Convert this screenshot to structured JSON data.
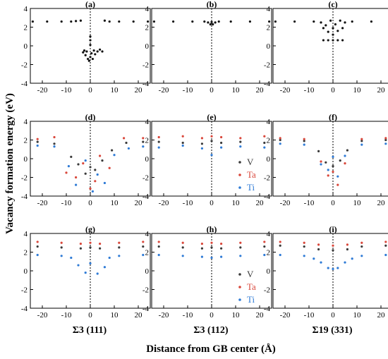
{
  "figure": {
    "ylabel": "Vacancy formation energy (eV)",
    "xlabel": "Distance from GB center (Å)",
    "column_labels": [
      "Σ3 (111)",
      "Σ3 (112)",
      "Σ19 (331)"
    ],
    "legend": [
      {
        "name": "V",
        "color": "#3a3a3a"
      },
      {
        "name": "Ta",
        "color": "#d9473b"
      },
      {
        "name": "Ti",
        "color": "#2f7bd6"
      }
    ],
    "x_ticks": [
      -20,
      -10,
      0,
      10,
      20
    ],
    "y_ticks": [
      -4,
      -2,
      0,
      2,
      4
    ],
    "xlim": [
      -25,
      25
    ],
    "ylim": [
      -4,
      4
    ]
  },
  "chart_data": [
    {
      "panel": "(a)",
      "type": "scatter",
      "xlim": [
        -25,
        25
      ],
      "ylim": [
        -4,
        4
      ],
      "series": [
        {
          "name": "V",
          "color": "#111111",
          "points": [
            [
              -24,
              2.6
            ],
            [
              -18,
              2.6
            ],
            [
              -12,
              2.6
            ],
            [
              -8,
              2.6
            ],
            [
              -6,
              2.65
            ],
            [
              -4,
              2.7
            ],
            [
              -3,
              -0.7
            ],
            [
              -2.5,
              -0.5
            ],
            [
              -2,
              -1.0
            ],
            [
              -1.5,
              -0.6
            ],
            [
              -1,
              -1.4
            ],
            [
              -0.5,
              -1.6
            ],
            [
              0,
              -1.2
            ],
            [
              0,
              0.1
            ],
            [
              0,
              0.6
            ],
            [
              0,
              1.0
            ],
            [
              0.5,
              -0.8
            ],
            [
              1,
              -1.4
            ],
            [
              1.5,
              -0.5
            ],
            [
              2,
              -0.9
            ],
            [
              3,
              -0.6
            ],
            [
              4,
              -0.4
            ],
            [
              5,
              -0.6
            ],
            [
              6,
              2.7
            ],
            [
              8,
              2.6
            ],
            [
              12,
              2.6
            ],
            [
              18,
              2.6
            ],
            [
              24,
              2.6
            ]
          ]
        }
      ]
    },
    {
      "panel": "(b)",
      "type": "scatter",
      "xlim": [
        -25,
        25
      ],
      "ylim": [
        -4,
        4
      ],
      "series": [
        {
          "name": "V",
          "color": "#111111",
          "points": [
            [
              -24,
              2.6
            ],
            [
              -16,
              2.6
            ],
            [
              -8,
              2.6
            ],
            [
              -3,
              2.6
            ],
            [
              -1.5,
              2.5
            ],
            [
              -0.5,
              2.3
            ],
            [
              0,
              2.55
            ],
            [
              0.5,
              2.3
            ],
            [
              1.5,
              2.5
            ],
            [
              3,
              2.6
            ],
            [
              8,
              2.6
            ],
            [
              16,
              2.6
            ],
            [
              24,
              2.6
            ]
          ]
        }
      ]
    },
    {
      "panel": "(c)",
      "type": "scatter",
      "xlim": [
        -25,
        25
      ],
      "ylim": [
        -4,
        4
      ],
      "series": [
        {
          "name": "V",
          "color": "#111111",
          "points": [
            [
              -24,
              2.6
            ],
            [
              -16,
              2.6
            ],
            [
              -8,
              2.6
            ],
            [
              -5,
              2.5
            ],
            [
              -4,
              1.9
            ],
            [
              -3,
              2.2
            ],
            [
              -2,
              1.5
            ],
            [
              -1,
              2.7
            ],
            [
              0,
              1.9
            ],
            [
              0,
              1.2
            ],
            [
              1,
              2.3
            ],
            [
              2,
              1.6
            ],
            [
              3,
              2.7
            ],
            [
              4,
              1.9
            ],
            [
              5,
              2.5
            ],
            [
              -4,
              0.6
            ],
            [
              -2,
              0.6
            ],
            [
              0,
              0.6
            ],
            [
              2,
              0.6
            ],
            [
              4,
              0.6
            ],
            [
              8,
              2.6
            ],
            [
              16,
              2.6
            ],
            [
              24,
              2.6
            ]
          ]
        }
      ]
    },
    {
      "panel": "(d)",
      "type": "scatter",
      "xlim": [
        -25,
        25
      ],
      "ylim": [
        -4,
        4
      ],
      "series": [
        {
          "name": "V",
          "color": "#3a3a3a",
          "points": [
            [
              -22,
              1.8
            ],
            [
              -15,
              1.6
            ],
            [
              -8,
              0.2
            ],
            [
              -5,
              -0.6
            ],
            [
              -2,
              -1.6
            ],
            [
              0,
              -0.9
            ],
            [
              2,
              -1.2
            ],
            [
              5,
              -0.2
            ],
            [
              9,
              0.9
            ],
            [
              15,
              1.7
            ],
            [
              22,
              1.8
            ]
          ]
        },
        {
          "name": "Ta",
          "color": "#d9473b",
          "points": [
            [
              -22,
              2.1
            ],
            [
              -15,
              2.3
            ],
            [
              -10,
              -1.5
            ],
            [
              -6,
              -2.0
            ],
            [
              -3,
              -0.5
            ],
            [
              0,
              -3.2
            ],
            [
              2,
              -2.4
            ],
            [
              4,
              0.3
            ],
            [
              8,
              -1.0
            ],
            [
              14,
              2.2
            ],
            [
              22,
              2.2
            ]
          ]
        },
        {
          "name": "Ti",
          "color": "#2f7bd6",
          "points": [
            [
              -22,
              1.4
            ],
            [
              -15,
              1.3
            ],
            [
              -9,
              -0.8
            ],
            [
              -6,
              -2.8
            ],
            [
              -2,
              -0.2
            ],
            [
              1,
              -3.5
            ],
            [
              3,
              -1.7
            ],
            [
              6,
              -2.6
            ],
            [
              10,
              0.4
            ],
            [
              16,
              1.1
            ],
            [
              22,
              1.3
            ]
          ]
        }
      ]
    },
    {
      "panel": "(e)",
      "type": "scatter",
      "xlim": [
        -25,
        25
      ],
      "ylim": [
        -4,
        4
      ],
      "series": [
        {
          "name": "V",
          "color": "#3a3a3a",
          "points": [
            [
              -22,
              1.8
            ],
            [
              -12,
              1.7
            ],
            [
              -4,
              1.6
            ],
            [
              0,
              1.9
            ],
            [
              4,
              1.7
            ],
            [
              12,
              1.8
            ],
            [
              22,
              1.7
            ]
          ]
        },
        {
          "name": "Ta",
          "color": "#d9473b",
          "points": [
            [
              -22,
              2.3
            ],
            [
              -12,
              2.4
            ],
            [
              -4,
              2.2
            ],
            [
              0,
              2.4
            ],
            [
              4,
              2.3
            ],
            [
              12,
              2.2
            ],
            [
              22,
              2.4
            ]
          ]
        },
        {
          "name": "Ti",
          "color": "#2f7bd6",
          "points": [
            [
              -22,
              1.2
            ],
            [
              -12,
              1.4
            ],
            [
              -4,
              1.1
            ],
            [
              0,
              0.4
            ],
            [
              4,
              1.2
            ],
            [
              12,
              1.3
            ],
            [
              22,
              1.2
            ]
          ]
        }
      ]
    },
    {
      "panel": "(f)",
      "type": "scatter",
      "xlim": [
        -25,
        25
      ],
      "ylim": [
        -4,
        4
      ],
      "series": [
        {
          "name": "V",
          "color": "#3a3a3a",
          "points": [
            [
              -22,
              2.0
            ],
            [
              -12,
              1.9
            ],
            [
              -6,
              0.8
            ],
            [
              -3,
              -0.4
            ],
            [
              0,
              -0.8
            ],
            [
              3,
              -0.2
            ],
            [
              6,
              0.9
            ],
            [
              12,
              1.9
            ],
            [
              22,
              2.0
            ]
          ]
        },
        {
          "name": "Ta",
          "color": "#d9473b",
          "points": [
            [
              -22,
              2.2
            ],
            [
              -12,
              2.1
            ],
            [
              -5,
              -0.3
            ],
            [
              -2,
              -1.8
            ],
            [
              0,
              -1.4
            ],
            [
              2,
              -2.8
            ],
            [
              5,
              -0.5
            ],
            [
              12,
              2.1
            ],
            [
              22,
              2.2
            ]
          ]
        },
        {
          "name": "Ti",
          "color": "#2f7bd6",
          "points": [
            [
              -22,
              1.6
            ],
            [
              -12,
              1.5
            ],
            [
              -5,
              -0.6
            ],
            [
              -2,
              -1.2
            ],
            [
              0,
              0.2
            ],
            [
              2,
              -1.9
            ],
            [
              5,
              0.3
            ],
            [
              12,
              1.5
            ],
            [
              22,
              1.6
            ]
          ]
        }
      ]
    },
    {
      "panel": "(g)",
      "type": "scatter",
      "xlim": [
        -25,
        25
      ],
      "ylim": [
        -4,
        4
      ],
      "series": [
        {
          "name": "V",
          "color": "#3a3a3a",
          "points": [
            [
              -22,
              2.6
            ],
            [
              -12,
              2.5
            ],
            [
              -4,
              2.4
            ],
            [
              0,
              2.5
            ],
            [
              4,
              2.4
            ],
            [
              12,
              2.5
            ],
            [
              22,
              2.6
            ]
          ]
        },
        {
          "name": "Ta",
          "color": "#d9473b",
          "points": [
            [
              -22,
              3.1
            ],
            [
              -12,
              3.0
            ],
            [
              -4,
              2.9
            ],
            [
              0,
              3.0
            ],
            [
              4,
              2.9
            ],
            [
              12,
              3.0
            ],
            [
              22,
              3.1
            ]
          ]
        },
        {
          "name": "Ti",
          "color": "#2f7bd6",
          "points": [
            [
              -22,
              1.7
            ],
            [
              -12,
              1.6
            ],
            [
              -8,
              1.4
            ],
            [
              -5,
              0.6
            ],
            [
              -2,
              -0.2
            ],
            [
              0,
              0.8
            ],
            [
              3,
              -0.3
            ],
            [
              6,
              0.4
            ],
            [
              8,
              1.4
            ],
            [
              12,
              1.6
            ],
            [
              22,
              1.7
            ]
          ]
        }
      ]
    },
    {
      "panel": "(h)",
      "type": "scatter",
      "xlim": [
        -25,
        25
      ],
      "ylim": [
        -4,
        4
      ],
      "series": [
        {
          "name": "V",
          "color": "#3a3a3a",
          "points": [
            [
              -22,
              2.6
            ],
            [
              -12,
              2.5
            ],
            [
              -4,
              2.4
            ],
            [
              0,
              2.5
            ],
            [
              4,
              2.4
            ],
            [
              12,
              2.5
            ],
            [
              22,
              2.6
            ]
          ]
        },
        {
          "name": "Ta",
          "color": "#d9473b",
          "points": [
            [
              -22,
              3.1
            ],
            [
              -12,
              3.0
            ],
            [
              -4,
              2.9
            ],
            [
              0,
              3.0
            ],
            [
              4,
              2.9
            ],
            [
              12,
              3.0
            ],
            [
              22,
              3.1
            ]
          ]
        },
        {
          "name": "Ti",
          "color": "#2f7bd6",
          "points": [
            [
              -22,
              1.7
            ],
            [
              -12,
              1.6
            ],
            [
              -4,
              1.5
            ],
            [
              0,
              1.4
            ],
            [
              4,
              1.5
            ],
            [
              12,
              1.6
            ],
            [
              22,
              1.7
            ]
          ]
        }
      ]
    },
    {
      "panel": "(i)",
      "type": "scatter",
      "xlim": [
        -25,
        25
      ],
      "ylim": [
        -4,
        4
      ],
      "series": [
        {
          "name": "V",
          "color": "#3a3a3a",
          "points": [
            [
              -22,
              2.7
            ],
            [
              -12,
              2.6
            ],
            [
              -6,
              2.3
            ],
            [
              0,
              2.2
            ],
            [
              6,
              2.3
            ],
            [
              12,
              2.6
            ],
            [
              22,
              2.7
            ]
          ]
        },
        {
          "name": "Ta",
          "color": "#d9473b",
          "points": [
            [
              -22,
              3.1
            ],
            [
              -12,
              3.0
            ],
            [
              -6,
              2.8
            ],
            [
              0,
              2.7
            ],
            [
              6,
              2.8
            ],
            [
              12,
              3.0
            ],
            [
              22,
              3.1
            ]
          ]
        },
        {
          "name": "Ti",
          "color": "#2f7bd6",
          "points": [
            [
              -22,
              1.7
            ],
            [
              -12,
              1.6
            ],
            [
              -8,
              1.3
            ],
            [
              -5,
              0.9
            ],
            [
              -2,
              0.3
            ],
            [
              0,
              0.2
            ],
            [
              2,
              0.3
            ],
            [
              5,
              0.9
            ],
            [
              8,
              1.3
            ],
            [
              12,
              1.6
            ],
            [
              22,
              1.7
            ]
          ]
        }
      ]
    }
  ]
}
